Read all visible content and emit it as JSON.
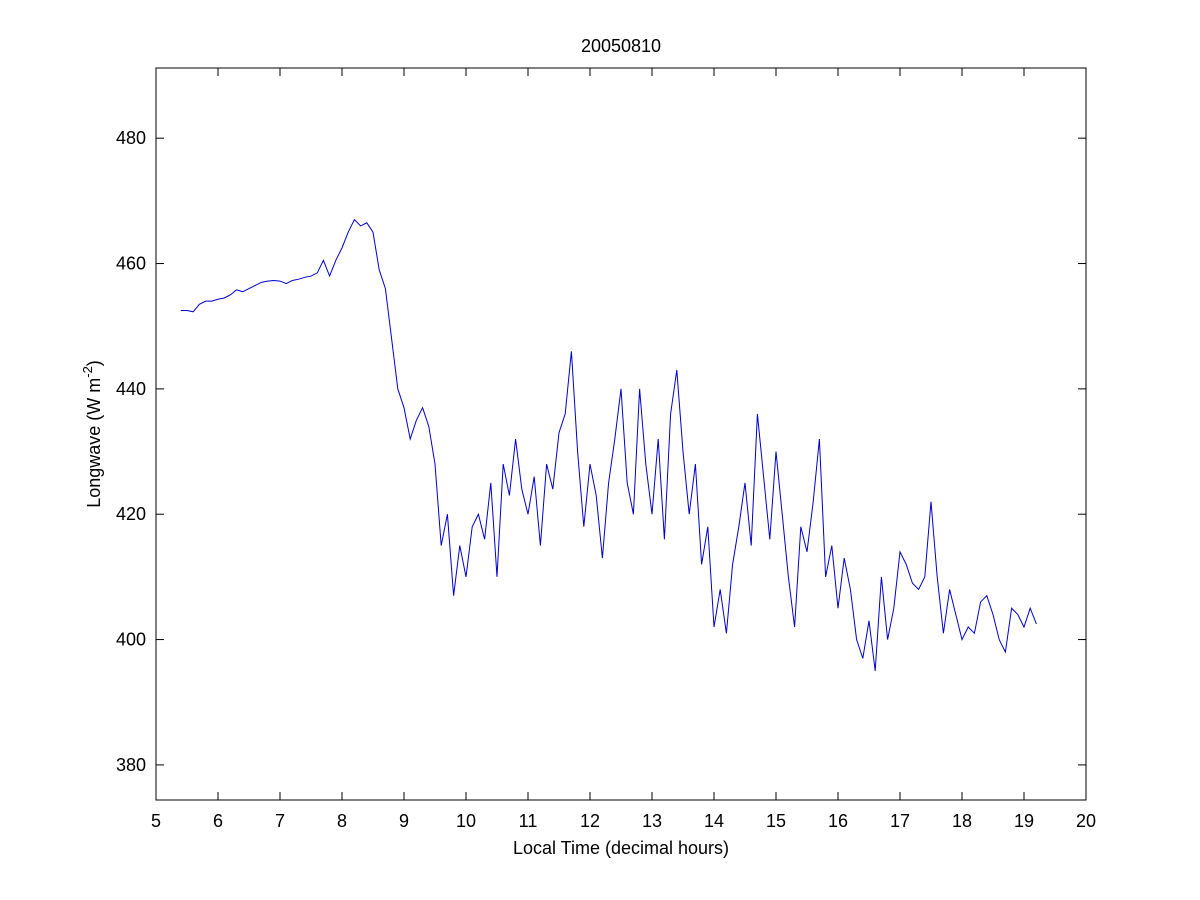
{
  "chart_data": {
    "type": "line",
    "title": "20050810",
    "x_label": "Local Time (decimal hours)",
    "y_label": {
      "text": "Longwave (W m",
      "superscript": "-2",
      "suffix": ")"
    },
    "xlim": [
      5,
      20
    ],
    "xticks": [
      5,
      6,
      7,
      8,
      9,
      10,
      11,
      12,
      13,
      14,
      15,
      16,
      17,
      18,
      19,
      20
    ],
    "ylim": [
      374.4,
      491.2
    ],
    "yticks": [
      380,
      400,
      420,
      440,
      460,
      480
    ],
    "grid": false,
    "x": [
      5.4,
      5.5,
      5.6,
      5.7,
      5.8,
      5.9,
      6.0,
      6.1,
      6.2,
      6.3,
      6.4,
      6.5,
      6.6,
      6.7,
      6.8,
      6.9,
      7.0,
      7.1,
      7.2,
      7.3,
      7.4,
      7.5,
      7.6,
      7.7,
      7.8,
      7.9,
      8.0,
      8.1,
      8.2,
      8.3,
      8.4,
      8.5,
      8.6,
      8.7,
      8.8,
      8.9,
      9.0,
      9.1,
      9.2,
      9.3,
      9.4,
      9.5,
      9.6,
      9.7,
      9.8,
      9.9,
      10.0,
      10.1,
      10.2,
      10.3,
      10.4,
      10.5,
      10.6,
      10.7,
      10.8,
      10.9,
      11.0,
      11.1,
      11.2,
      11.3,
      11.4,
      11.5,
      11.6,
      11.7,
      11.8,
      11.9,
      12.0,
      12.1,
      12.2,
      12.3,
      12.4,
      12.5,
      12.6,
      12.7,
      12.8,
      12.9,
      13.0,
      13.1,
      13.2,
      13.3,
      13.4,
      13.5,
      13.6,
      13.7,
      13.8,
      13.9,
      14.0,
      14.1,
      14.2,
      14.3,
      14.4,
      14.5,
      14.6,
      14.7,
      14.8,
      14.9,
      15.0,
      15.1,
      15.2,
      15.3,
      15.4,
      15.5,
      15.6,
      15.7,
      15.8,
      15.9,
      16.0,
      16.1,
      16.2,
      16.3,
      16.4,
      16.5,
      16.6,
      16.7,
      16.8,
      16.9,
      17.0,
      17.1,
      17.2,
      17.3,
      17.4,
      17.5,
      17.6,
      17.7,
      17.8,
      17.9,
      18.0,
      18.1,
      18.2,
      18.3,
      18.4,
      18.5,
      18.6,
      18.7,
      18.8,
      18.9,
      19.0,
      19.1,
      19.2
    ],
    "series": [
      {
        "color": "#0000cc",
        "values": [
          452.5,
          452.5,
          452.3,
          453.5,
          454,
          454,
          454.3,
          454.5,
          455,
          455.8,
          455.5,
          456,
          456.5,
          457,
          457.2,
          457.3,
          457.2,
          456.8,
          457.3,
          457.5,
          457.8,
          458,
          458.5,
          460.5,
          458,
          460.5,
          462.5,
          465,
          467,
          466,
          466.5,
          465,
          459,
          456,
          448,
          440,
          437,
          432,
          435,
          437,
          434,
          428,
          415,
          420,
          407,
          415,
          410,
          418,
          420,
          416,
          425,
          410,
          428,
          423,
          432,
          424,
          420,
          426,
          415,
          428,
          424,
          433,
          436,
          446,
          430,
          418,
          428,
          423,
          413,
          425,
          432,
          440,
          425,
          420,
          440,
          428,
          420,
          432,
          416,
          436,
          443,
          430,
          420,
          428,
          412,
          418,
          402,
          408,
          401,
          412,
          418,
          425,
          415,
          436,
          426,
          416,
          430,
          420,
          410,
          402,
          418,
          414,
          422,
          432,
          410,
          415,
          405,
          413,
          408,
          400,
          397,
          403,
          395,
          410,
          400,
          405,
          414,
          412,
          409,
          408,
          410,
          422,
          410,
          401,
          408,
          404,
          400,
          402,
          401,
          406,
          407,
          404,
          400,
          398,
          405,
          404,
          402,
          405,
          402.5
        ]
      }
    ]
  }
}
